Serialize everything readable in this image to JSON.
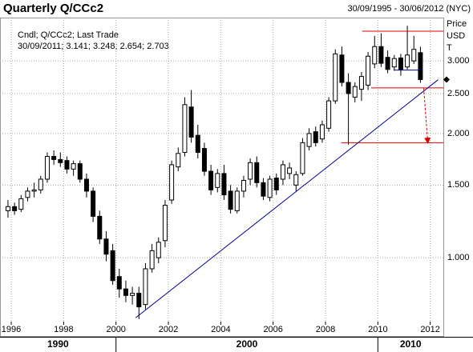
{
  "chart_data": {
    "type": "candlestick",
    "title": "Quarterly Q/CCc2",
    "subtitle": "30/09/1995 - 30/06/2012 (NYC)",
    "annotation": [
      "Cndl; Q/CCc2; Last Trade",
      "30/09/2011; 3.141; 3.248; 2.654; 2.703"
    ],
    "axis_units": [
      "Price",
      "USD",
      "T"
    ],
    "x": [
      1995.875,
      1996.125,
      1996.375,
      1996.625,
      1996.875,
      1997.125,
      1997.375,
      1997.625,
      1997.875,
      1998.125,
      1998.375,
      1998.625,
      1998.875,
      1999.125,
      1999.375,
      1999.625,
      1999.875,
      2000.125,
      2000.375,
      2000.625,
      2000.875,
      2001.125,
      2001.375,
      2001.625,
      2001.875,
      2002.125,
      2002.375,
      2002.625,
      2002.875,
      2003.125,
      2003.375,
      2003.625,
      2003.875,
      2004.125,
      2004.375,
      2004.625,
      2004.875,
      2005.125,
      2005.375,
      2005.625,
      2005.875,
      2006.125,
      2006.375,
      2006.625,
      2006.875,
      2007.125,
      2007.375,
      2007.625,
      2007.875,
      2008.125,
      2008.375,
      2008.625,
      2008.875,
      2009.125,
      2009.375,
      2009.625,
      2009.875,
      2010.125,
      2010.375,
      2010.625,
      2010.875,
      2011.125,
      2011.375,
      2011.625
    ],
    "open": [
      1.3,
      1.33,
      1.31,
      1.4,
      1.45,
      1.46,
      1.55,
      1.76,
      1.73,
      1.72,
      1.64,
      1.69,
      1.55,
      1.45,
      1.26,
      1.11,
      1.04,
      0.9,
      0.84,
      0.81,
      0.82,
      0.77,
      0.94,
      1.0,
      1.1,
      1.38,
      1.66,
      1.8,
      2.32,
      1.98,
      1.84,
      1.62,
      1.48,
      1.6,
      1.45,
      1.3,
      1.45,
      1.55,
      1.7,
      1.52,
      1.4,
      1.56,
      1.55,
      1.6,
      1.5,
      1.6,
      1.86,
      2.02,
      1.94,
      2.06,
      2.4,
      3.1,
      2.66,
      2.45,
      2.56,
      2.62,
      2.95,
      3.25,
      3.06,
      2.9,
      3.05,
      2.9,
      3.0,
      3.141
    ],
    "high": [
      1.38,
      1.36,
      1.42,
      1.48,
      1.52,
      1.58,
      1.8,
      1.82,
      1.8,
      1.76,
      1.72,
      1.72,
      1.6,
      1.48,
      1.3,
      1.16,
      1.08,
      0.94,
      0.88,
      0.85,
      0.85,
      0.97,
      1.08,
      1.12,
      1.38,
      1.72,
      1.85,
      2.45,
      2.55,
      2.1,
      1.9,
      1.68,
      1.64,
      1.68,
      1.5,
      1.48,
      1.58,
      1.74,
      1.76,
      1.56,
      1.58,
      1.6,
      1.72,
      1.7,
      1.62,
      1.95,
      2.06,
      2.08,
      2.15,
      2.45,
      3.2,
      3.25,
      2.8,
      2.66,
      2.82,
      3.15,
      3.45,
      3.5,
      3.18,
      3.1,
      3.12,
      3.65,
      3.45,
      3.248
    ],
    "low": [
      1.25,
      1.27,
      1.29,
      1.37,
      1.4,
      1.43,
      1.52,
      1.68,
      1.66,
      1.6,
      1.58,
      1.52,
      1.4,
      1.22,
      1.08,
      0.98,
      0.86,
      0.8,
      0.78,
      0.77,
      0.71,
      0.75,
      0.92,
      0.97,
      1.06,
      1.35,
      1.62,
      1.76,
      1.9,
      1.74,
      1.58,
      1.42,
      1.44,
      1.38,
      1.28,
      1.28,
      1.4,
      1.5,
      1.48,
      1.38,
      1.37,
      1.42,
      1.5,
      1.55,
      1.45,
      1.58,
      1.82,
      1.86,
      1.9,
      2.02,
      2.36,
      2.6,
      1.88,
      2.38,
      2.4,
      2.55,
      2.88,
      2.9,
      2.8,
      2.84,
      2.76,
      2.86,
      2.95,
      2.654
    ],
    "close": [
      1.33,
      1.3,
      1.39,
      1.45,
      1.46,
      1.55,
      1.76,
      1.73,
      1.7,
      1.64,
      1.69,
      1.55,
      1.45,
      1.26,
      1.11,
      1.02,
      0.88,
      0.84,
      0.81,
      0.82,
      0.76,
      0.94,
      1.04,
      1.09,
      1.34,
      1.68,
      1.79,
      2.35,
      1.96,
      1.8,
      1.62,
      1.46,
      1.6,
      1.42,
      1.31,
      1.45,
      1.54,
      1.7,
      1.52,
      1.41,
      1.55,
      1.46,
      1.68,
      1.65,
      1.59,
      1.9,
      2.0,
      1.9,
      2.1,
      2.4,
      3.12,
      2.66,
      2.5,
      2.6,
      2.75,
      3.08,
      3.25,
      2.96,
      2.86,
      3.04,
      2.86,
      3.1,
      3.2,
      2.703
    ],
    "up_color": "#ffffff",
    "down_color": "#000000",
    "wick_color": "#000000",
    "xlim": [
      1995.57,
      2012.5
    ],
    "ylim": [
      0.7,
      3.82
    ],
    "log_y": true,
    "grid": true,
    "xticks": [
      1996,
      1998,
      2000,
      2002,
      2004,
      2006,
      2008,
      2010,
      2012
    ],
    "yticks": [
      {
        "value": 3,
        "label": "3.000"
      },
      {
        "value": 2.5,
        "label": "2.500"
      },
      {
        "value": 2,
        "label": "2.000"
      },
      {
        "value": 1.5,
        "label": "1.500"
      },
      {
        "value": 1,
        "label": "1.000"
      }
    ],
    "decades": [
      1990,
      2000,
      2010
    ],
    "lines": [
      {
        "color": "#e00000",
        "x": [
          2009.4,
          2012.5
        ],
        "y": [
          3.54,
          3.54
        ]
      },
      {
        "color": "#e00000",
        "x": [
          2009.74,
          2012.5
        ],
        "y": [
          2.58,
          2.58
        ]
      },
      {
        "color": "#e00000",
        "x": [
          2008.6,
          2012.5
        ],
        "y": [
          1.9,
          1.9
        ]
      },
      {
        "color": "#00008b",
        "x": [
          2000.75,
          2012.3
        ],
        "y": [
          0.715,
          2.7
        ]
      },
      {
        "color": "#00008b",
        "x": [
          2010.6,
          2011.6
        ],
        "y": [
          2.85,
          2.85
        ]
      },
      {
        "color": "#e00000",
        "x": [
          2011.75,
          2011.9
        ],
        "y": [
          2.58,
          1.92
        ],
        "dash": true,
        "arrow": true
      }
    ]
  }
}
